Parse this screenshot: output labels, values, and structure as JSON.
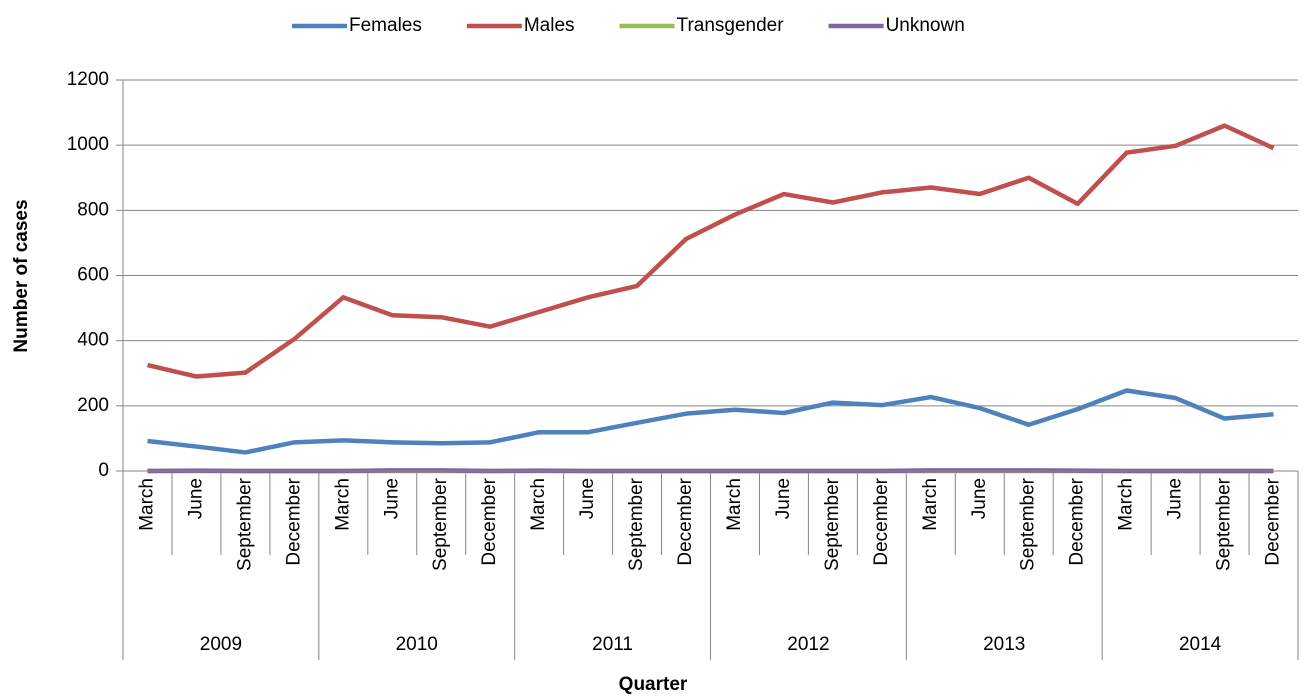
{
  "chart_data": {
    "type": "line",
    "x_label": "Quarter",
    "y_label": "Number of cases",
    "categories": [
      "March",
      "June",
      "September",
      "December",
      "March",
      "June",
      "September",
      "December",
      "March",
      "June",
      "September",
      "December",
      "March",
      "June",
      "September",
      "December",
      "March",
      "June",
      "September",
      "December",
      "March",
      "June",
      "September",
      "December"
    ],
    "category_groups": [
      "2009",
      "2010",
      "2011",
      "2012",
      "2013",
      "2014"
    ],
    "series": [
      {
        "name": "Females",
        "color": "#4f81bd",
        "values": [
          92,
          75,
          57,
          88,
          94,
          88,
          85,
          88,
          119,
          119,
          148,
          176,
          188,
          178,
          210,
          202,
          227,
          193,
          142,
          190,
          247,
          224,
          161,
          174
        ]
      },
      {
        "name": "Males",
        "color": "#c0504d",
        "values": [
          325,
          290,
          302,
          405,
          533,
          478,
          472,
          443,
          488,
          533,
          568,
          712,
          787,
          850,
          824,
          855,
          870,
          850,
          900,
          820,
          977,
          998,
          1060,
          991
        ]
      },
      {
        "name": "Transgender",
        "color": "#9bbb59",
        "values": [
          0,
          0,
          0,
          0,
          0,
          0,
          0,
          0,
          0,
          0,
          0,
          0,
          0,
          0,
          0,
          0,
          0,
          0,
          0,
          0,
          0,
          0,
          0,
          0
        ]
      },
      {
        "name": "Unknown",
        "color": "#8064a2",
        "values": [
          0,
          1,
          0,
          0,
          0,
          2,
          2,
          0,
          1,
          0,
          0,
          0,
          0,
          0,
          0,
          0,
          2,
          2,
          2,
          1,
          0,
          0,
          0,
          0
        ]
      }
    ],
    "ylim": [
      0,
      1200
    ],
    "yticks": [
      0,
      200,
      400,
      600,
      800,
      1000,
      1200
    ],
    "grid": true,
    "legend": "top"
  }
}
